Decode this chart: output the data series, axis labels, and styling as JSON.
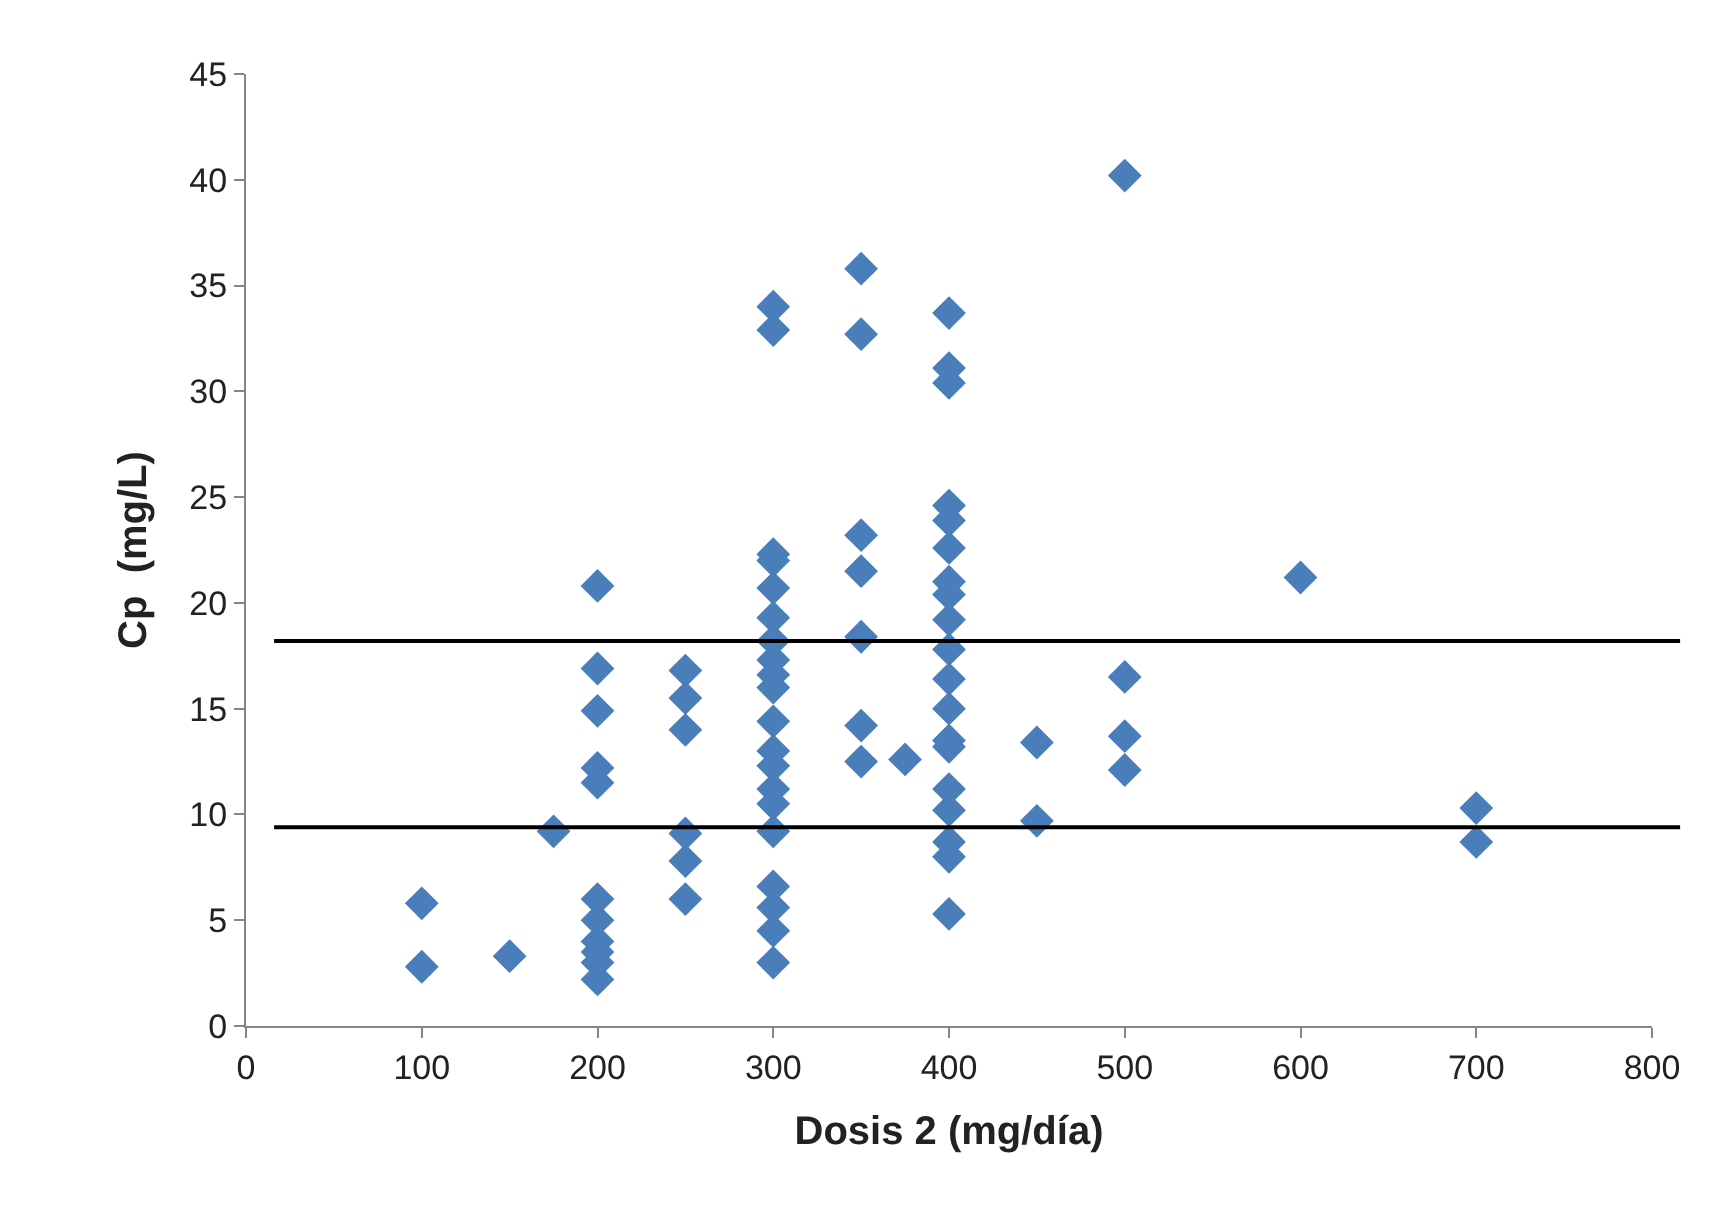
{
  "chart_data": {
    "type": "scatter",
    "xlabel": "Dosis 2 (mg/día)",
    "ylabel": "Cp  (mg/L)",
    "x": [
      100,
      100,
      150,
      175,
      200,
      200,
      200,
      200,
      200,
      200,
      200,
      200,
      200,
      200,
      200,
      250,
      250,
      250,
      250,
      250,
      250,
      300,
      300,
      300,
      300,
      300,
      300,
      300,
      300,
      300,
      300,
      300,
      300,
      300,
      300,
      300,
      300,
      300,
      300,
      300,
      300,
      350,
      350,
      350,
      350,
      350,
      350,
      350,
      375,
      400,
      400,
      400,
      400,
      400,
      400,
      400,
      400,
      400,
      400,
      400,
      400,
      400,
      400,
      400,
      400,
      400,
      400,
      400,
      450,
      450,
      500,
      500,
      500,
      500,
      600,
      700,
      700
    ],
    "values": [
      5.8,
      2.8,
      3.3,
      9.2,
      20.8,
      16.9,
      14.9,
      12.2,
      11.5,
      6.0,
      5.0,
      4.0,
      3.5,
      3.0,
      2.2,
      16.8,
      15.5,
      14.0,
      9.1,
      7.8,
      6.0,
      34.0,
      32.9,
      22.3,
      22.0,
      20.7,
      19.3,
      18.2,
      17.3,
      16.6,
      16.0,
      14.4,
      13.0,
      12.3,
      11.2,
      10.5,
      9.2,
      6.6,
      5.6,
      4.5,
      3.0,
      35.8,
      32.7,
      23.2,
      21.5,
      18.4,
      14.2,
      12.5,
      12.6,
      33.7,
      31.1,
      30.4,
      24.6,
      23.9,
      22.6,
      21.0,
      20.4,
      19.2,
      17.8,
      16.4,
      15.0,
      13.5,
      13.2,
      11.2,
      10.2,
      8.7,
      8.0,
      5.3,
      13.4,
      9.7,
      40.2,
      16.5,
      13.7,
      12.1,
      21.2,
      10.3,
      8.7
    ],
    "color": "#4a7ebb",
    "marker": "diamond",
    "xlim": [
      0,
      800
    ],
    "xticks": [
      0,
      100,
      200,
      300,
      400,
      500,
      600,
      700,
      800
    ],
    "ylim": [
      0,
      45
    ],
    "yticks": [
      0,
      5,
      10,
      15,
      20,
      25,
      30,
      35,
      40,
      45
    ],
    "ref_lines": [
      {
        "axis": "y",
        "value": 18.2,
        "color": "#000000"
      },
      {
        "axis": "y",
        "value": 9.4,
        "color": "#000000"
      }
    ]
  }
}
